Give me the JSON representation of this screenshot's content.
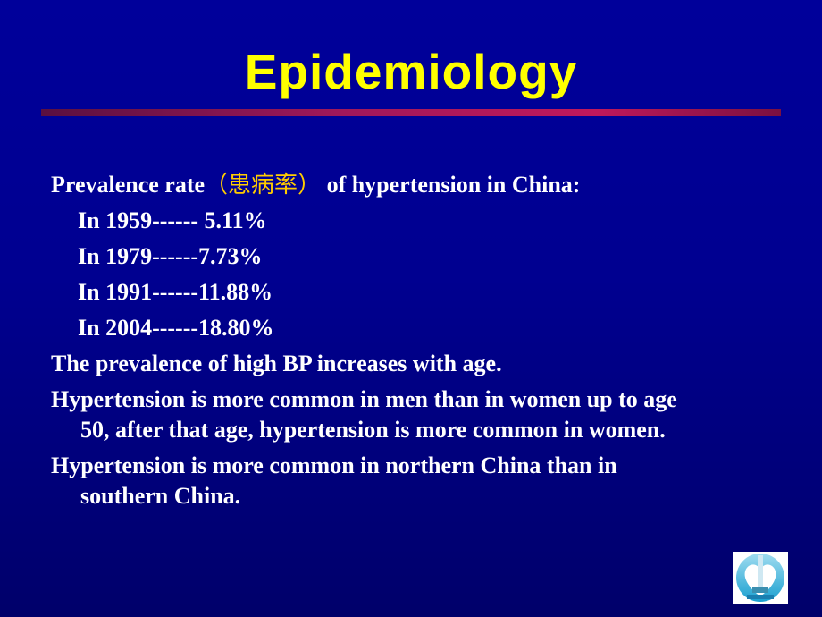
{
  "title": "Epidemiology",
  "intro": {
    "before": "Prevalence rate",
    "chinese": "（患病率）",
    "after": " of hypertension in China:"
  },
  "years": [
    "In 1959------ 5.11%",
    "In 1979------7.73%",
    "In 1991------11.88%",
    "In 2004------18.80%"
  ],
  "points": [
    {
      "first": "The prevalence of high BP increases with age.",
      "cont": ""
    },
    {
      "first": "Hypertension is more common in men than in women up to age",
      "cont": "50, after that age, hypertension is more common in women."
    },
    {
      "first": "Hypertension is more common in northern China than in",
      "cont": "southern China."
    }
  ],
  "colors": {
    "title": "#ffff00",
    "accent_cn": "#ffcc00",
    "background": "#000099",
    "rule": "#c0185c"
  }
}
